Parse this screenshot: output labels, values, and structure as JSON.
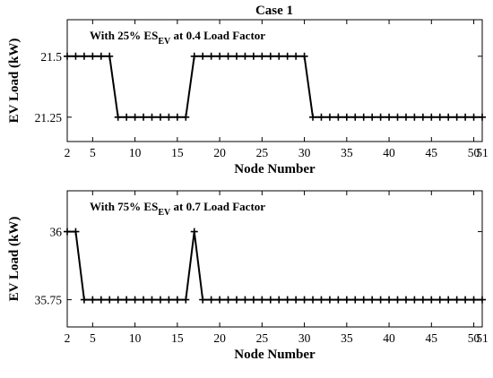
{
  "chart_data": [
    {
      "type": "line",
      "title": "Case 1",
      "annotation": {
        "prefix": "With 25% ES",
        "sub": "EV",
        "suffix": " at 0.4 Load Factor"
      },
      "xlabel": "Node Number",
      "ylabel": "EV Load (kW)",
      "xlim": [
        2,
        51
      ],
      "ylim": [
        21.15,
        21.65
      ],
      "xticks": [
        2,
        5,
        10,
        15,
        20,
        25,
        30,
        35,
        40,
        45,
        50,
        51
      ],
      "yticks": [
        21.25,
        21.5
      ],
      "ytick_labels": [
        "21.25",
        "21.5"
      ],
      "grid": false,
      "series": [
        {
          "x": [
            2,
            3,
            4,
            5,
            6,
            7,
            8,
            9,
            10,
            11,
            12,
            13,
            14,
            15,
            16,
            17,
            18,
            19,
            20,
            21,
            22,
            23,
            24,
            25,
            26,
            27,
            28,
            29,
            30,
            31,
            32,
            33,
            34,
            35,
            36,
            37,
            38,
            39,
            40,
            41,
            42,
            43,
            44,
            45,
            46,
            47,
            48,
            49,
            50,
            51
          ],
          "values": [
            21.5,
            21.5,
            21.5,
            21.5,
            21.5,
            21.5,
            21.25,
            21.25,
            21.25,
            21.25,
            21.25,
            21.25,
            21.25,
            21.25,
            21.25,
            21.5,
            21.5,
            21.5,
            21.5,
            21.5,
            21.5,
            21.5,
            21.5,
            21.5,
            21.5,
            21.5,
            21.5,
            21.5,
            21.5,
            21.25,
            21.25,
            21.25,
            21.25,
            21.25,
            21.25,
            21.25,
            21.25,
            21.25,
            21.25,
            21.25,
            21.25,
            21.25,
            21.25,
            21.25,
            21.25,
            21.25,
            21.25,
            21.25,
            21.25,
            21.25
          ]
        }
      ]
    },
    {
      "type": "line",
      "title": "",
      "annotation": {
        "prefix": "With 75% ES",
        "sub": "EV",
        "suffix": " at 0.7 Load Factor"
      },
      "xlabel": "Node Number",
      "ylabel": "EV Load (kW)",
      "xlim": [
        2,
        51
      ],
      "ylim": [
        35.65,
        36.15
      ],
      "xticks": [
        2,
        5,
        10,
        15,
        20,
        25,
        30,
        35,
        40,
        45,
        50,
        51
      ],
      "yticks": [
        35.75,
        36
      ],
      "ytick_labels": [
        "35.75",
        "36"
      ],
      "grid": false,
      "series": [
        {
          "x": [
            2,
            3,
            4,
            5,
            6,
            7,
            8,
            9,
            10,
            11,
            12,
            13,
            14,
            15,
            16,
            17,
            18,
            19,
            20,
            21,
            22,
            23,
            24,
            25,
            26,
            27,
            28,
            29,
            30,
            31,
            32,
            33,
            34,
            35,
            36,
            37,
            38,
            39,
            40,
            41,
            42,
            43,
            44,
            45,
            46,
            47,
            48,
            49,
            50,
            51
          ],
          "values": [
            36,
            36,
            35.75,
            35.75,
            35.75,
            35.75,
            35.75,
            35.75,
            35.75,
            35.75,
            35.75,
            35.75,
            35.75,
            35.75,
            35.75,
            36,
            35.75,
            35.75,
            35.75,
            35.75,
            35.75,
            35.75,
            35.75,
            35.75,
            35.75,
            35.75,
            35.75,
            35.75,
            35.75,
            35.75,
            35.75,
            35.75,
            35.75,
            35.75,
            35.75,
            35.75,
            35.75,
            35.75,
            35.75,
            35.75,
            35.75,
            35.75,
            35.75,
            35.75,
            35.75,
            35.75,
            35.75,
            35.75,
            35.75,
            35.75
          ]
        }
      ]
    }
  ]
}
